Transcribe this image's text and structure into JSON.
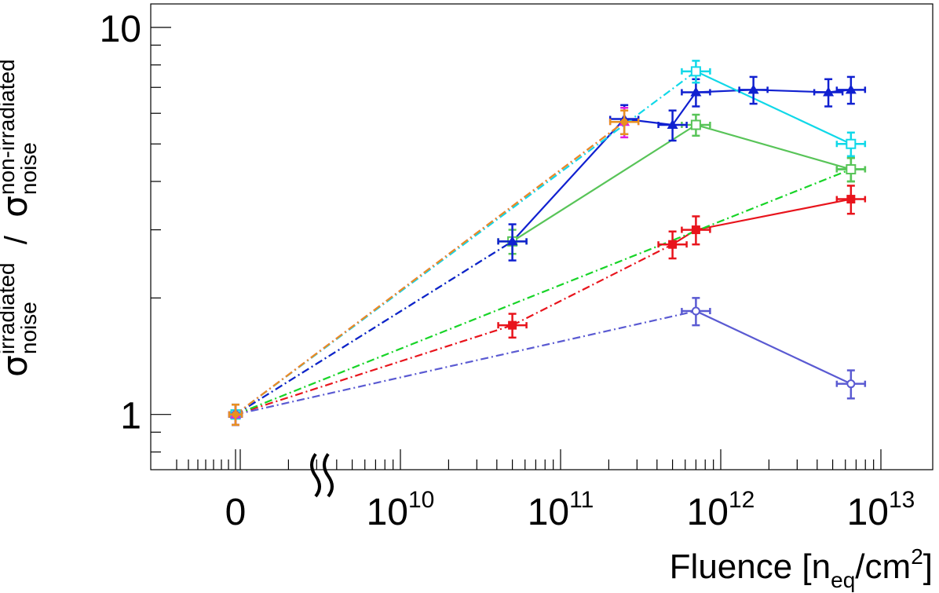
{
  "chart_data": {
    "type": "scatter",
    "title": "",
    "xlabel": {
      "main": "Fluence [n",
      "sub": "eq",
      "mid": "/cm",
      "sup": "2",
      "end": "]"
    },
    "ylabel": {
      "num_symbol": "σ",
      "num_sup": "irradiated",
      "num_sub": "noise",
      "slash": "/",
      "den_symbol": "σ",
      "den_sup": "non-irradiated",
      "den_sub": "noise"
    },
    "yscale": "log",
    "ylim": [
      0.72,
      11.5
    ],
    "xscale": "log-with-zero-break",
    "xlim_log10": [
      9.0,
      13.3
    ],
    "zero_category_label": "0",
    "axis_break_symbol": "≈",
    "x_tick_labels": [
      {
        "base": "10",
        "exp": "10",
        "log10": 10
      },
      {
        "base": "10",
        "exp": "11",
        "log10": 11
      },
      {
        "base": "10",
        "exp": "12",
        "log10": 12
      },
      {
        "base": "10",
        "exp": "13",
        "log10": 13
      }
    ],
    "y_tick_labels": [
      {
        "label": "1",
        "value": 1
      },
      {
        "label": "10",
        "value": 10
      }
    ],
    "series": [
      {
        "name": "red",
        "color": "#e8141c",
        "marker": "filled-square",
        "points": [
          {
            "x": 0,
            "y": 1.0,
            "ey": 0.06
          },
          {
            "x": 50000000000.0,
            "y": 1.7,
            "ey": 0.12
          },
          {
            "x": 500000000000.0,
            "y": 2.75,
            "ey": 0.22
          },
          {
            "x": 700000000000.0,
            "y": 3.0,
            "ey": 0.25
          },
          {
            "x": 6500000000000.0,
            "y": 3.6,
            "ey": 0.3
          }
        ]
      },
      {
        "name": "green",
        "color": "#18d428",
        "marker": "filled-square",
        "points": [
          {
            "x": 0,
            "y": 1.0,
            "ey": 0.06
          },
          {
            "x": 6500000000000.0,
            "y": 4.3,
            "ey": 0.3
          }
        ]
      },
      {
        "name": "light-green",
        "color": "#58c458",
        "marker": "open-square",
        "points": [
          {
            "x": 0,
            "y": 1.0,
            "ey": 0.06
          },
          {
            "x": 50000000000.0,
            "y": 2.8,
            "ey": 0.2
          },
          {
            "x": 700000000000.0,
            "y": 5.6,
            "ey": 0.35
          },
          {
            "x": 6500000000000.0,
            "y": 4.3,
            "ey": 0.3
          }
        ]
      },
      {
        "name": "blue",
        "color": "#1020d0",
        "marker": "filled-triangle",
        "points": [
          {
            "x": 0,
            "y": 1.0,
            "ey": 0.06
          },
          {
            "x": 50000000000.0,
            "y": 2.8,
            "ey": 0.3
          },
          {
            "x": 250000000000.0,
            "y": 5.8,
            "ey": 0.5
          },
          {
            "x": 500000000000.0,
            "y": 5.6,
            "ey": 0.5
          },
          {
            "x": 700000000000.0,
            "y": 6.8,
            "ey": 0.55
          },
          {
            "x": 1600000000000.0,
            "y": 6.9,
            "ey": 0.55
          },
          {
            "x": 4700000000000.0,
            "y": 6.8,
            "ey": 0.55
          },
          {
            "x": 6500000000000.0,
            "y": 6.9,
            "ey": 0.55
          }
        ]
      },
      {
        "name": "cyan",
        "color": "#10d8e8",
        "marker": "open-square",
        "points": [
          {
            "x": 0,
            "y": 1.0,
            "ey": 0.06
          },
          {
            "x": 700000000000.0,
            "y": 7.7,
            "ey": 0.5
          },
          {
            "x": 6500000000000.0,
            "y": 5.0,
            "ey": 0.35
          }
        ]
      },
      {
        "name": "violet",
        "color": "#5a5ad2",
        "marker": "open-circle",
        "points": [
          {
            "x": 0,
            "y": 1.0,
            "ey": 0.06
          },
          {
            "x": 700000000000.0,
            "y": 1.85,
            "ey": 0.15
          },
          {
            "x": 6500000000000.0,
            "y": 1.2,
            "ey": 0.1
          }
        ]
      },
      {
        "name": "magenta",
        "color": "#e020e0",
        "marker": "filled-triangle",
        "points": [
          {
            "x": 0,
            "y": 1.0,
            "ey": 0.06
          },
          {
            "x": 250000000000.0,
            "y": 5.7,
            "ey": 0.5
          }
        ]
      },
      {
        "name": "orange",
        "color": "#e89020",
        "marker": "filled-circle",
        "points": [
          {
            "x": 0,
            "y": 1.0,
            "ey": 0.06
          },
          {
            "x": 250000000000.0,
            "y": 5.7,
            "ey": 0.4
          }
        ]
      }
    ]
  }
}
